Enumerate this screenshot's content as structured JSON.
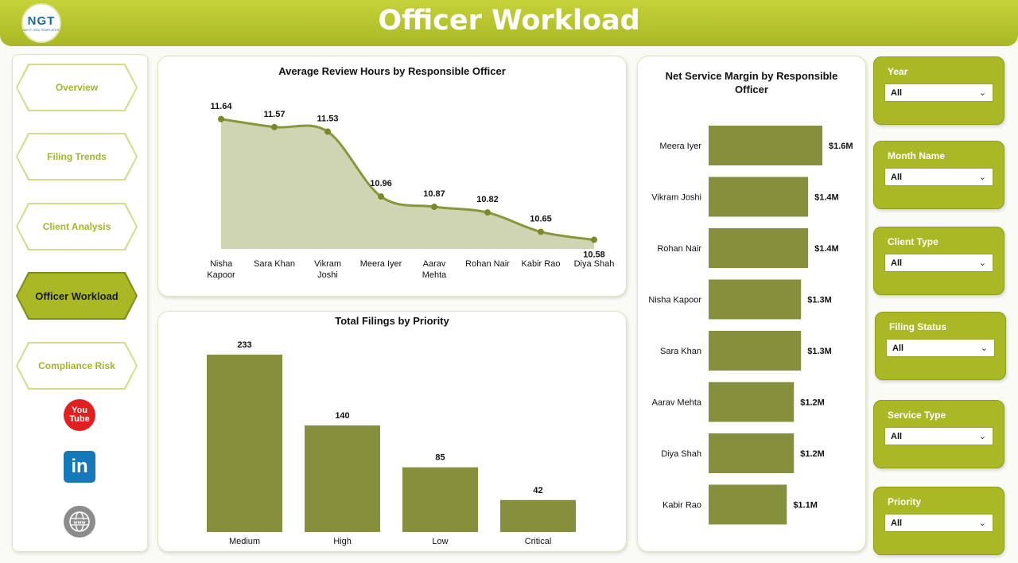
{
  "header": {
    "title": "Officer Workload",
    "logo_text": "NGT",
    "logo_subtext": "NEXT GEN TEMPLATES"
  },
  "nav": {
    "items": [
      {
        "label": "Overview",
        "active": false
      },
      {
        "label": "Filing Trends",
        "active": false
      },
      {
        "label": "Client Analysis",
        "active": false
      },
      {
        "label": "Officer Workload",
        "active": true
      },
      {
        "label": "Compliance Risk",
        "active": false
      }
    ],
    "social": [
      {
        "icon": "youtube-icon",
        "text": "You Tube"
      },
      {
        "icon": "linkedin-icon",
        "text": "in"
      },
      {
        "icon": "globe-icon",
        "text": "www"
      }
    ]
  },
  "chart_data": [
    {
      "type": "area",
      "title": "Average Review Hours by Responsible Officer",
      "categories": [
        "Nisha Kapoor",
        "Sara Khan",
        "Vikram Joshi",
        "Meera Iyer",
        "Aarav Mehta",
        "Rohan Nair",
        "Kabir Rao",
        "Diya Shah"
      ],
      "values": [
        11.64,
        11.57,
        11.53,
        10.96,
        10.87,
        10.82,
        10.65,
        10.58
      ],
      "data_labels": [
        "11.64",
        "11.57",
        "11.53",
        "10.96",
        "10.87",
        "10.82",
        "10.65",
        "10.58"
      ],
      "ylim": [
        10.5,
        11.75
      ],
      "color": "#8a963a",
      "fill": "#cfd4b2"
    },
    {
      "type": "bar",
      "title": "Total Filings by Priority",
      "categories": [
        "Medium",
        "High",
        "Low",
        "Critical"
      ],
      "values": [
        233,
        140,
        85,
        42
      ],
      "data_labels": [
        "233",
        "140",
        "85",
        "42"
      ],
      "ylim": [
        0,
        233
      ],
      "color": "#86903c"
    },
    {
      "type": "bar",
      "orientation": "horizontal",
      "title": "Net Service Margin by Responsible Officer",
      "categories": [
        "Meera Iyer",
        "Vikram Joshi",
        "Rohan Nair",
        "Nisha Kapoor",
        "Sara Khan",
        "Aarav Mehta",
        "Diya Shah",
        "Kabir Rao"
      ],
      "values": [
        1.6,
        1.4,
        1.4,
        1.3,
        1.3,
        1.2,
        1.2,
        1.1
      ],
      "data_labels": [
        "$1.6M",
        "$1.4M",
        "$1.4M",
        "$1.3M",
        "$1.3M",
        "$1.2M",
        "$1.2M",
        "$1.1M"
      ],
      "unit": "$M",
      "color": "#86903c"
    }
  ],
  "filters": [
    {
      "label": "Year",
      "value": "All"
    },
    {
      "label": "Month Name",
      "value": "All"
    },
    {
      "label": "Client Type",
      "value": "All"
    },
    {
      "label": "Filing Status",
      "value": "All"
    },
    {
      "label": "Service Type",
      "value": "All"
    },
    {
      "label": "Priority",
      "value": "All"
    }
  ]
}
